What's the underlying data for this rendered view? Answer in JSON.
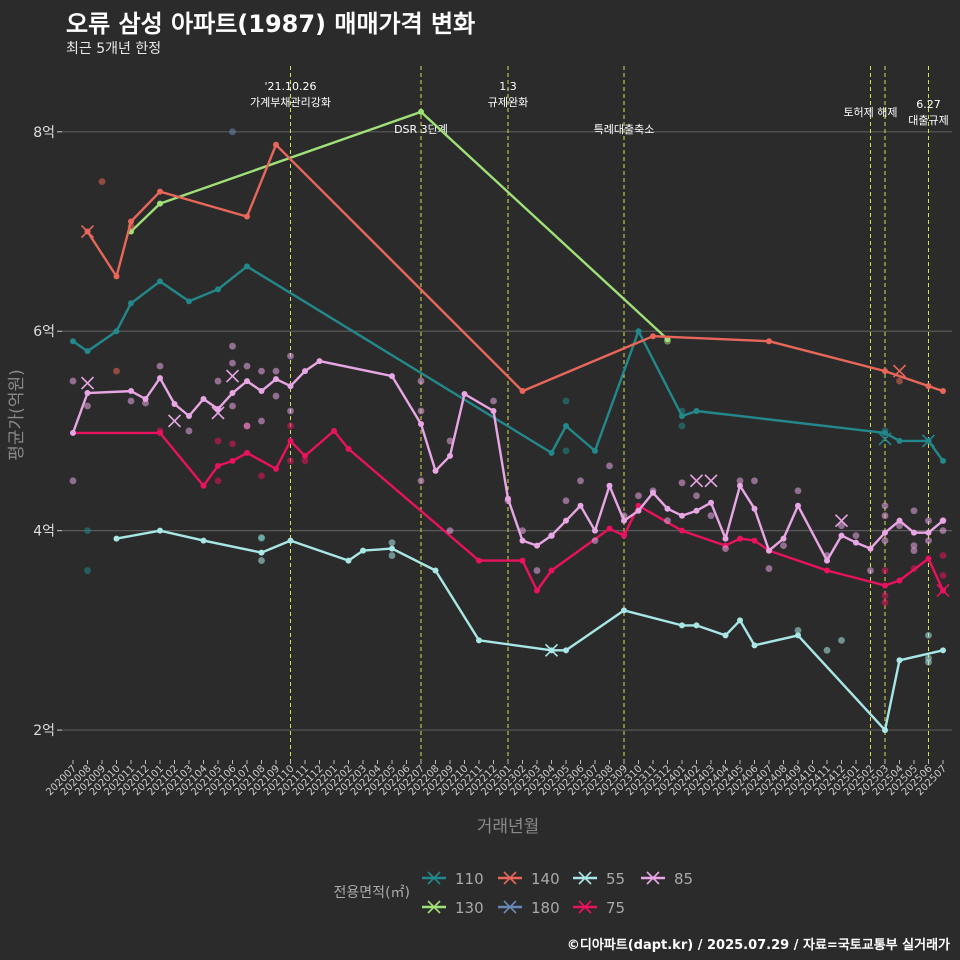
{
  "title": "오류 삼성 아파트(1987) 매매가격 변화",
  "subtitle": "최근 5개년 한정",
  "caption": "©디아파트(dapt.kr) / 2025.07.29 / 자료=국토교통부 실거래가",
  "chart_data": {
    "type": "line",
    "xlabel": "거래년월",
    "ylabel": "평균가(억원)",
    "ylim": [
      1.7,
      8.7
    ],
    "yticks": [
      2,
      4,
      6,
      8
    ],
    "ytick_labels": [
      "2억",
      "4억",
      "6억",
      "8억"
    ],
    "grid": true,
    "legend_title": "전용면적(㎡)",
    "legend_position": "bottom",
    "x_start": "2020-07",
    "x_end": "2025-07",
    "xtick_labels": [
      "202007",
      "202008",
      "202009",
      "202010",
      "202011",
      "202012",
      "202101",
      "202102",
      "202103",
      "202104",
      "202105",
      "202106",
      "202107",
      "202108",
      "202109",
      "202110",
      "202111",
      "202112",
      "202201",
      "202202",
      "202203",
      "202204",
      "202205",
      "202206",
      "202207",
      "202208",
      "202209",
      "202210",
      "202211",
      "202212",
      "202301",
      "202302",
      "202303",
      "202304",
      "202305",
      "202306",
      "202307",
      "202308",
      "202309",
      "202310",
      "202311",
      "202312",
      "202401",
      "202402",
      "202403",
      "202404",
      "202405",
      "202406",
      "202407",
      "202408",
      "202409",
      "202410",
      "202411",
      "202412",
      "202501",
      "202502",
      "202503",
      "202504",
      "202505",
      "202506",
      "202507"
    ],
    "events": [
      {
        "x": "2021-10",
        "label": "'21.10.26\n가계부채관리강화",
        "label_row": 1
      },
      {
        "x": "2022-07",
        "label": "DSR 3단계",
        "label_row": 3
      },
      {
        "x": "2023-01",
        "label": "1.3\n규제완화",
        "label_row": 1
      },
      {
        "x": "2023-09",
        "label": "특례대출축소",
        "label_row": 3
      },
      {
        "x": "2025-02",
        "label": "토허제 해제",
        "label_row": 2
      },
      {
        "x": "2025-03",
        "label": "",
        "label_row": 2
      },
      {
        "x": "2025-06",
        "label": "6.27\n대출규제",
        "label_row": 4
      }
    ],
    "series": [
      {
        "name": "110",
        "color": "#23888b",
        "line": [
          [
            "2020-07",
            5.9
          ],
          [
            "2020-08",
            5.8
          ],
          [
            "2020-10",
            6.0
          ],
          [
            "2020-11",
            6.28
          ],
          [
            "2021-01",
            6.5
          ],
          [
            "2021-03",
            6.3
          ],
          [
            "2021-05",
            6.42
          ],
          [
            "2021-07",
            6.65
          ],
          [
            "2023-04",
            4.78
          ],
          [
            "2023-05",
            5.05
          ],
          [
            "2023-07",
            4.8
          ],
          [
            "2023-10",
            6.0
          ],
          [
            "2024-01",
            5.15
          ],
          [
            "2024-02",
            5.2
          ],
          [
            "2025-03",
            4.98
          ],
          [
            "2025-04",
            4.9
          ],
          [
            "2025-06",
            4.9
          ],
          [
            "2025-07",
            4.7
          ]
        ],
        "points": [
          [
            "2020-08",
            4.0
          ],
          [
            "2020-08",
            3.6
          ],
          [
            "2021-08",
            3.92
          ],
          [
            "2023-05",
            5.3
          ],
          [
            "2023-05",
            4.8
          ],
          [
            "2024-01",
            5.05
          ],
          [
            "2024-01",
            5.2
          ],
          [
            "2025-03",
            5.0
          ]
        ],
        "x_marks": [
          [
            "2025-03",
            4.92
          ],
          [
            "2025-06",
            4.9
          ]
        ]
      },
      {
        "name": "130",
        "color": "#9fe078",
        "line": [
          [
            "2020-11",
            7.0
          ],
          [
            "2021-01",
            7.28
          ],
          [
            "2022-07",
            8.2
          ],
          [
            "2023-12",
            5.92
          ]
        ],
        "points": [
          [
            "2023-12",
            5.9
          ]
        ],
        "x_marks": []
      },
      {
        "name": "140",
        "color": "#e8675a",
        "line": [
          [
            "2020-08",
            7.0
          ],
          [
            "2020-10",
            6.55
          ],
          [
            "2020-11",
            7.1
          ],
          [
            "2021-01",
            7.4
          ],
          [
            "2021-07",
            7.15
          ],
          [
            "2021-09",
            7.87
          ],
          [
            "2023-02",
            5.4
          ],
          [
            "2023-11",
            5.95
          ],
          [
            "2024-07",
            5.9
          ],
          [
            "2025-03",
            5.6
          ],
          [
            "2025-06",
            5.45
          ],
          [
            "2025-07",
            5.4
          ]
        ],
        "points": [
          [
            "2020-09",
            7.5
          ],
          [
            "2020-11",
            7.05
          ],
          [
            "2025-04",
            5.5
          ],
          [
            "2020-10",
            5.6
          ]
        ],
        "x_marks": [
          [
            "2020-08",
            7.0
          ],
          [
            "2025-04",
            5.6
          ]
        ]
      },
      {
        "name": "180",
        "color": "#6a88b7",
        "line": [],
        "points": [
          [
            "2021-06",
            8.0
          ]
        ],
        "x_marks": []
      },
      {
        "name": "55",
        "color": "#a9e7e6",
        "line": [
          [
            "2020-10",
            3.92
          ],
          [
            "2021-01",
            4.0
          ],
          [
            "2021-04",
            3.9
          ],
          [
            "2021-08",
            3.78
          ],
          [
            "2021-10",
            3.9
          ],
          [
            "2022-02",
            3.7
          ],
          [
            "2022-03",
            3.8
          ],
          [
            "2022-05",
            3.82
          ],
          [
            "2022-08",
            3.6
          ],
          [
            "2022-11",
            2.9
          ],
          [
            "2023-04",
            2.8
          ],
          [
            "2023-05",
            2.8
          ],
          [
            "2023-09",
            3.2
          ],
          [
            "2024-01",
            3.05
          ],
          [
            "2024-02",
            3.05
          ],
          [
            "2024-04",
            2.95
          ],
          [
            "2024-05",
            3.1
          ],
          [
            "2024-06",
            2.85
          ],
          [
            "2024-09",
            2.95
          ],
          [
            "2025-03",
            2.0
          ],
          [
            "2025-04",
            2.7
          ],
          [
            "2025-07",
            2.8
          ]
        ],
        "points": [
          [
            "2021-08",
            3.7
          ],
          [
            "2021-08",
            3.93
          ],
          [
            "2022-05",
            3.75
          ],
          [
            "2022-05",
            3.88
          ],
          [
            "2024-09",
            3.0
          ],
          [
            "2024-11",
            2.8
          ],
          [
            "2024-12",
            2.9
          ],
          [
            "2025-06",
            2.95
          ],
          [
            "2025-06",
            2.68
          ],
          [
            "2025-06",
            2.72
          ]
        ],
        "x_marks": [
          [
            "2023-04",
            2.8
          ]
        ]
      },
      {
        "name": "75",
        "color": "#e8125e",
        "line": [
          [
            "2020-07",
            4.98
          ],
          [
            "2021-01",
            4.98
          ],
          [
            "2021-04",
            4.45
          ],
          [
            "2021-05",
            4.65
          ],
          [
            "2021-06",
            4.7
          ],
          [
            "2021-07",
            4.78
          ],
          [
            "2021-09",
            4.62
          ],
          [
            "2021-10",
            4.9
          ],
          [
            "2021-11",
            4.75
          ],
          [
            "2022-01",
            5.0
          ],
          [
            "2022-02",
            4.82
          ],
          [
            "2022-11",
            3.7
          ],
          [
            "2023-02",
            3.7
          ],
          [
            "2023-03",
            3.4
          ],
          [
            "2023-04",
            3.6
          ],
          [
            "2023-08",
            4.02
          ],
          [
            "2023-09",
            3.95
          ],
          [
            "2023-10",
            4.25
          ],
          [
            "2024-01",
            4.0
          ],
          [
            "2024-04",
            3.85
          ],
          [
            "2024-05",
            3.92
          ],
          [
            "2024-06",
            3.9
          ],
          [
            "2024-07",
            3.8
          ],
          [
            "2024-11",
            3.6
          ],
          [
            "2025-03",
            3.45
          ],
          [
            "2025-04",
            3.5
          ],
          [
            "2025-06",
            3.72
          ],
          [
            "2025-07",
            3.4
          ]
        ],
        "points": [
          [
            "2021-01",
            5.0
          ],
          [
            "2021-05",
            4.5
          ],
          [
            "2021-05",
            4.9
          ],
          [
            "2021-06",
            4.87
          ],
          [
            "2021-07",
            5.05
          ],
          [
            "2021-08",
            4.55
          ],
          [
            "2021-10",
            5.05
          ],
          [
            "2021-10",
            4.7
          ],
          [
            "2021-11",
            4.7
          ],
          [
            "2023-09",
            3.97
          ],
          [
            "2025-03",
            3.28
          ],
          [
            "2025-03",
            3.35
          ],
          [
            "2025-03",
            3.6
          ],
          [
            "2025-05",
            3.62
          ],
          [
            "2025-07",
            3.55
          ],
          [
            "2025-07",
            3.75
          ]
        ],
        "x_marks": [
          [
            "2025-07",
            3.4
          ]
        ]
      },
      {
        "name": "85",
        "color": "#e8a6e4",
        "line": [
          [
            "2020-07",
            4.98
          ],
          [
            "2020-08",
            5.38
          ],
          [
            "2020-11",
            5.4
          ],
          [
            "2020-12",
            5.32
          ],
          [
            "2021-01",
            5.53
          ],
          [
            "2021-02",
            5.27
          ],
          [
            "2021-03",
            5.15
          ],
          [
            "2021-04",
            5.32
          ],
          [
            "2021-05",
            5.22
          ],
          [
            "2021-06",
            5.38
          ],
          [
            "2021-07",
            5.5
          ],
          [
            "2021-08",
            5.4
          ],
          [
            "2021-09",
            5.52
          ],
          [
            "2021-10",
            5.45
          ],
          [
            "2021-11",
            5.6
          ],
          [
            "2021-12",
            5.7
          ],
          [
            "2022-05",
            5.55
          ],
          [
            "2022-07",
            5.07
          ],
          [
            "2022-08",
            4.6
          ],
          [
            "2022-09",
            4.75
          ],
          [
            "2022-10",
            5.37
          ],
          [
            "2022-12",
            5.2
          ],
          [
            "2023-01",
            4.32
          ],
          [
            "2023-02",
            3.9
          ],
          [
            "2023-03",
            3.85
          ],
          [
            "2023-04",
            3.95
          ],
          [
            "2023-05",
            4.1
          ],
          [
            "2023-06",
            4.25
          ],
          [
            "2023-07",
            4.0
          ],
          [
            "2023-08",
            4.45
          ],
          [
            "2023-09",
            4.1
          ],
          [
            "2023-10",
            4.2
          ],
          [
            "2023-11",
            4.38
          ],
          [
            "2023-12",
            4.22
          ],
          [
            "2024-01",
            4.15
          ],
          [
            "2024-02",
            4.2
          ],
          [
            "2024-03",
            4.28
          ],
          [
            "2024-04",
            3.92
          ],
          [
            "2024-05",
            4.45
          ],
          [
            "2024-06",
            4.22
          ],
          [
            "2024-07",
            3.8
          ],
          [
            "2024-08",
            3.92
          ],
          [
            "2024-09",
            4.25
          ],
          [
            "2024-11",
            3.7
          ],
          [
            "2024-12",
            3.95
          ],
          [
            "2025-01",
            3.88
          ],
          [
            "2025-02",
            3.82
          ],
          [
            "2025-03",
            3.98
          ],
          [
            "2025-04",
            4.1
          ],
          [
            "2025-05",
            3.98
          ],
          [
            "2025-06",
            3.98
          ],
          [
            "2025-07",
            4.1
          ]
        ],
        "points": [
          [
            "2020-07",
            5.5
          ],
          [
            "2020-07",
            4.5
          ],
          [
            "2020-08",
            5.25
          ],
          [
            "2020-11",
            5.3
          ],
          [
            "2020-12",
            5.28
          ],
          [
            "2021-01",
            5.65
          ],
          [
            "2021-03",
            5.0
          ],
          [
            "2021-05",
            5.5
          ],
          [
            "2021-06",
            5.25
          ],
          [
            "2021-06",
            5.68
          ],
          [
            "2021-06",
            5.85
          ],
          [
            "2021-07",
            5.65
          ],
          [
            "2021-07",
            5.05
          ],
          [
            "2021-08",
            5.6
          ],
          [
            "2021-08",
            5.1
          ],
          [
            "2021-09",
            5.35
          ],
          [
            "2021-09",
            5.6
          ],
          [
            "2021-10",
            5.75
          ],
          [
            "2021-10",
            5.2
          ],
          [
            "2022-07",
            5.5
          ],
          [
            "2022-07",
            4.5
          ],
          [
            "2022-07",
            5.2
          ],
          [
            "2022-09",
            4.0
          ],
          [
            "2022-09",
            4.9
          ],
          [
            "2022-12",
            5.3
          ],
          [
            "2023-01",
            4.3
          ],
          [
            "2023-02",
            4.0
          ],
          [
            "2023-03",
            3.6
          ],
          [
            "2023-04",
            3.95
          ],
          [
            "2023-05",
            4.3
          ],
          [
            "2023-06",
            4.5
          ],
          [
            "2023-07",
            3.9
          ],
          [
            "2023-08",
            4.65
          ],
          [
            "2023-09",
            4.15
          ],
          [
            "2023-10",
            4.35
          ],
          [
            "2023-11",
            4.4
          ],
          [
            "2023-12",
            4.1
          ],
          [
            "2024-01",
            4.48
          ],
          [
            "2024-02",
            4.35
          ],
          [
            "2024-03",
            4.15
          ],
          [
            "2024-04",
            3.82
          ],
          [
            "2024-05",
            4.5
          ],
          [
            "2024-06",
            4.5
          ],
          [
            "2024-07",
            3.62
          ],
          [
            "2024-08",
            3.85
          ],
          [
            "2024-09",
            4.4
          ],
          [
            "2024-11",
            3.75
          ],
          [
            "2024-12",
            4.05
          ],
          [
            "2025-01",
            3.95
          ],
          [
            "2025-02",
            3.6
          ],
          [
            "2025-03",
            4.25
          ],
          [
            "2025-03",
            4.15
          ],
          [
            "2025-03",
            3.9
          ],
          [
            "2025-04",
            4.05
          ],
          [
            "2025-05",
            4.2
          ],
          [
            "2025-05",
            3.85
          ],
          [
            "2025-05",
            3.8
          ],
          [
            "2025-06",
            4.1
          ],
          [
            "2025-06",
            3.9
          ],
          [
            "2025-07",
            4.1
          ],
          [
            "2025-07",
            4.0
          ]
        ],
        "x_marks": [
          [
            "2020-08",
            5.48
          ],
          [
            "2021-02",
            5.1
          ],
          [
            "2021-05",
            5.18
          ],
          [
            "2021-06",
            5.55
          ],
          [
            "2024-02",
            4.5
          ],
          [
            "2024-03",
            4.5
          ],
          [
            "2024-12",
            4.1
          ]
        ]
      }
    ]
  }
}
